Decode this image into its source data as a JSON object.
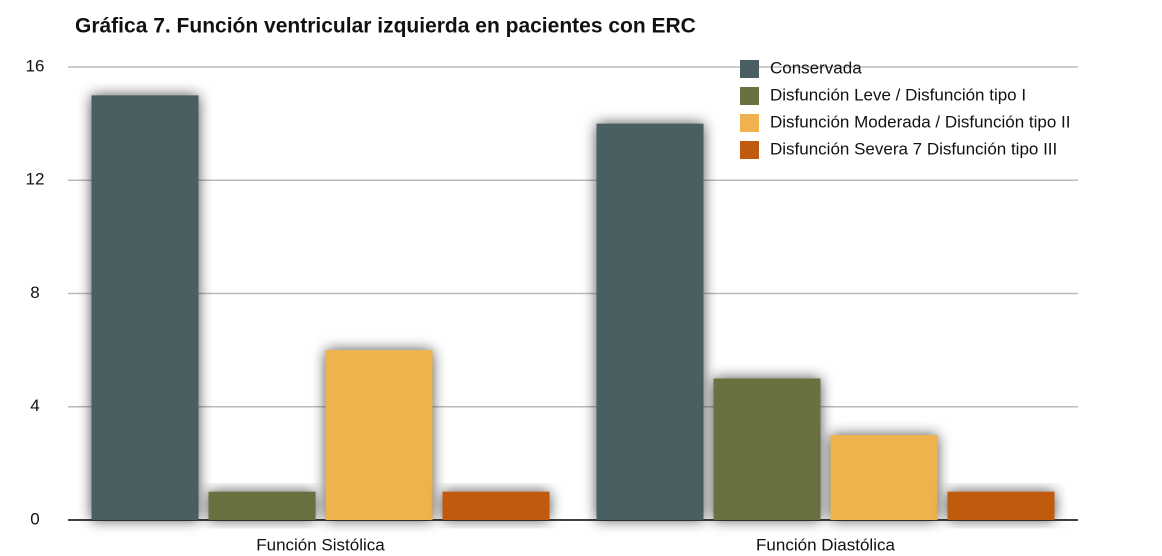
{
  "chart_data": {
    "type": "bar",
    "title": "Gráfica 7. Función ventricular izquierda en pacientes con ERC",
    "categories": [
      "Función Sistólica",
      "Función Diastólica"
    ],
    "series": [
      {
        "name": "Conservada",
        "color": "#4a5e62",
        "values": [
          15,
          14
        ]
      },
      {
        "name": "Disfunción Leve / Disfunción tipo I",
        "color": "#6b7040",
        "values": [
          1,
          5
        ]
      },
      {
        "name": "Disfunción Moderada / Disfunción tipo II",
        "color": "#f0b24e",
        "values": [
          6,
          3
        ]
      },
      {
        "name": "Disfunción Severa 7 Disfunción tipo III",
        "color": "#c05a0e",
        "values": [
          1,
          1
        ]
      }
    ],
    "ylim": [
      0,
      16
    ],
    "yticks": [
      0,
      4,
      8,
      12,
      16
    ],
    "grid": true,
    "legend": "top-right"
  }
}
